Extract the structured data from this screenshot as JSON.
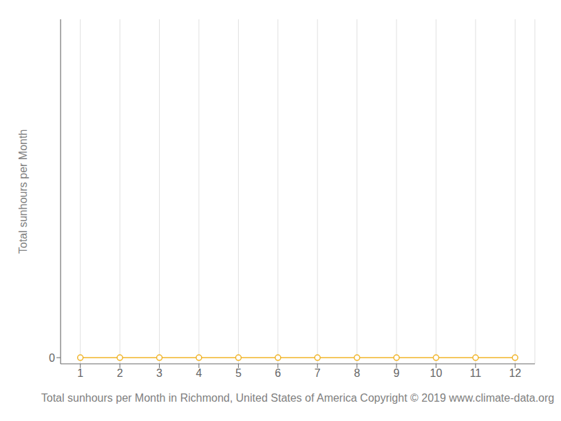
{
  "chart_data": {
    "type": "line",
    "x": [
      1,
      2,
      3,
      4,
      5,
      6,
      7,
      8,
      9,
      10,
      11,
      12
    ],
    "values": [
      0,
      0,
      0,
      0,
      0,
      0,
      0,
      0,
      0,
      0,
      0,
      0
    ],
    "color": "#f0b429",
    "marker": "circle",
    "xlabel": "Total sunhours per Month in Richmond, United States of America Copyright © 2019 www.climate-data.org",
    "ylabel": "Total sunhours per Month",
    "xlim": [
      0.5,
      12.5
    ],
    "ylim": [
      -10,
      550
    ],
    "xticks": [
      1,
      2,
      3,
      4,
      5,
      6,
      7,
      8,
      9,
      10,
      11,
      12
    ],
    "yticks": [
      0
    ],
    "grid": "x"
  }
}
